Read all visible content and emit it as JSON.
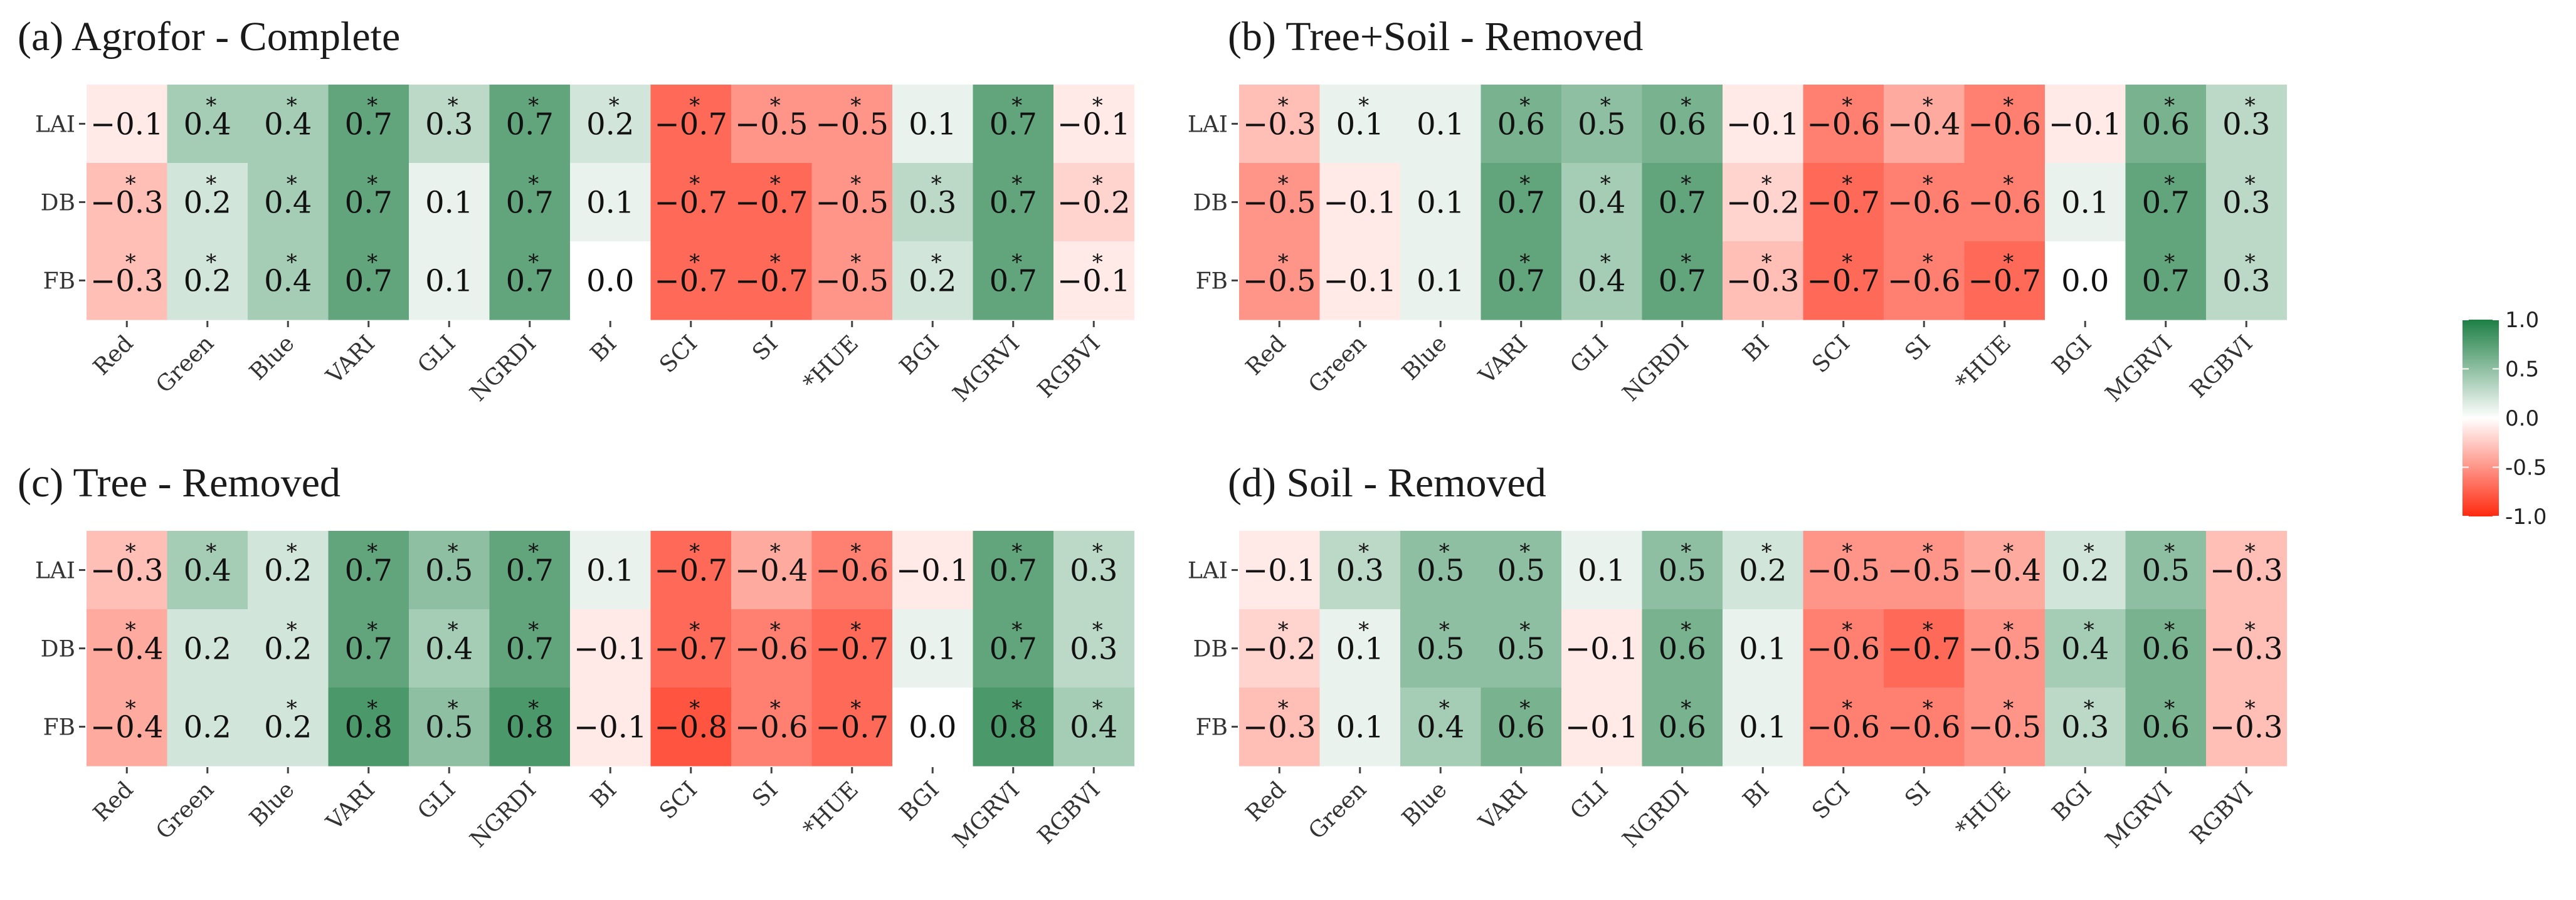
{
  "chart_data": [
    {
      "type": "heatmap",
      "title": "(a) Agrofor - Complete",
      "rows": [
        "LAI",
        "DB",
        "FB"
      ],
      "columns": [
        "Red",
        "Green",
        "Blue",
        "VARI",
        "GLI",
        "NGRDI",
        "BI",
        "SCI",
        "SI",
        "*HUE",
        "BGI",
        "MGRVI",
        "RGBVI"
      ],
      "labels": [
        [
          "−0.1",
          "0.4",
          "0.4",
          "0.7",
          "0.3",
          "0.7",
          "0.2",
          "−0.7",
          "−0.5",
          "−0.5",
          "0.1",
          "0.7",
          "−0.1"
        ],
        [
          "−0.3",
          "0.2",
          "0.4",
          "0.7",
          "0.1",
          "0.7",
          "0.1",
          "−0.7",
          "−0.7",
          "−0.5",
          "0.3",
          "0.7",
          "−0.2"
        ],
        [
          "−0.3",
          "0.2",
          "0.4",
          "0.7",
          "0.1",
          "0.7",
          "0.0",
          "−0.7",
          "−0.7",
          "−0.5",
          "0.2",
          "0.7",
          "−0.1"
        ]
      ],
      "values": [
        [
          -0.1,
          0.4,
          0.4,
          0.7,
          0.3,
          0.7,
          0.2,
          -0.7,
          -0.5,
          -0.5,
          0.1,
          0.7,
          -0.1
        ],
        [
          -0.3,
          0.2,
          0.4,
          0.7,
          0.1,
          0.7,
          0.1,
          -0.7,
          -0.7,
          -0.5,
          0.3,
          0.7,
          -0.2
        ],
        [
          -0.3,
          0.2,
          0.4,
          0.7,
          0.1,
          0.7,
          0.0,
          -0.7,
          -0.7,
          -0.5,
          0.2,
          0.7,
          -0.1
        ]
      ],
      "significant": [
        [
          0,
          1,
          1,
          1,
          1,
          1,
          1,
          1,
          1,
          1,
          0,
          1,
          1
        ],
        [
          1,
          1,
          1,
          1,
          0,
          1,
          0,
          1,
          1,
          1,
          1,
          1,
          1
        ],
        [
          1,
          1,
          1,
          1,
          0,
          1,
          0,
          1,
          1,
          1,
          1,
          1,
          1
        ]
      ]
    },
    {
      "type": "heatmap",
      "title": "(b) Tree+Soil - Removed",
      "rows": [
        "LAI",
        "DB",
        "FB"
      ],
      "columns": [
        "Red",
        "Green",
        "Blue",
        "VARI",
        "GLI",
        "NGRDI",
        "BI",
        "SCI",
        "SI",
        "*HUE",
        "BGI",
        "MGRVI",
        "RGBVI"
      ],
      "labels": [
        [
          "−0.3",
          "0.1",
          "0.1",
          "0.6",
          "0.5",
          "0.6",
          "−0.1",
          "−0.6",
          "−0.4",
          "−0.6",
          "−0.1",
          "0.6",
          "0.3"
        ],
        [
          "−0.5",
          "−0.1",
          "0.1",
          "0.7",
          "0.4",
          "0.7",
          "−0.2",
          "−0.7",
          "−0.6",
          "−0.6",
          "0.1",
          "0.7",
          "0.3"
        ],
        [
          "−0.5",
          "−0.1",
          "0.1",
          "0.7",
          "0.4",
          "0.7",
          "−0.3",
          "−0.7",
          "−0.6",
          "−0.7",
          "0.0",
          "0.7",
          "0.3"
        ]
      ],
      "values": [
        [
          -0.3,
          0.1,
          0.1,
          0.6,
          0.5,
          0.6,
          -0.1,
          -0.6,
          -0.4,
          -0.6,
          -0.1,
          0.6,
          0.3
        ],
        [
          -0.5,
          -0.1,
          0.1,
          0.7,
          0.4,
          0.7,
          -0.2,
          -0.7,
          -0.6,
          -0.6,
          0.1,
          0.7,
          0.3
        ],
        [
          -0.5,
          -0.1,
          0.1,
          0.7,
          0.4,
          0.7,
          -0.3,
          -0.7,
          -0.6,
          -0.7,
          0.0,
          0.7,
          0.3
        ]
      ],
      "significant": [
        [
          1,
          1,
          0,
          1,
          1,
          1,
          0,
          1,
          1,
          1,
          0,
          1,
          1
        ],
        [
          1,
          0,
          0,
          1,
          1,
          1,
          1,
          1,
          1,
          1,
          0,
          1,
          1
        ],
        [
          1,
          0,
          0,
          1,
          1,
          1,
          1,
          1,
          1,
          1,
          0,
          1,
          1
        ]
      ]
    },
    {
      "type": "heatmap",
      "title": "(c) Tree - Removed",
      "rows": [
        "LAI",
        "DB",
        "FB"
      ],
      "columns": [
        "Red",
        "Green",
        "Blue",
        "VARI",
        "GLI",
        "NGRDI",
        "BI",
        "SCI",
        "SI",
        "*HUE",
        "BGI",
        "MGRVI",
        "RGBVI"
      ],
      "labels": [
        [
          "−0.3",
          "0.4",
          "0.2",
          "0.7",
          "0.5",
          "0.7",
          "0.1",
          "−0.7",
          "−0.4",
          "−0.6",
          "−0.1",
          "0.7",
          "0.3"
        ],
        [
          "−0.4",
          "0.2",
          "0.2",
          "0.7",
          "0.4",
          "0.7",
          "−0.1",
          "−0.7",
          "−0.6",
          "−0.7",
          "0.1",
          "0.7",
          "0.3"
        ],
        [
          "−0.4",
          "0.2",
          "0.2",
          "0.8",
          "0.5",
          "0.8",
          "−0.1",
          "−0.8",
          "−0.6",
          "−0.7",
          "0.0",
          "0.8",
          "0.4"
        ]
      ],
      "values": [
        [
          -0.3,
          0.4,
          0.2,
          0.7,
          0.5,
          0.7,
          0.1,
          -0.7,
          -0.4,
          -0.6,
          -0.1,
          0.7,
          0.3
        ],
        [
          -0.4,
          0.2,
          0.2,
          0.7,
          0.4,
          0.7,
          -0.1,
          -0.7,
          -0.6,
          -0.7,
          0.1,
          0.7,
          0.3
        ],
        [
          -0.4,
          0.2,
          0.2,
          0.8,
          0.5,
          0.8,
          -0.1,
          -0.8,
          -0.6,
          -0.7,
          0.0,
          0.8,
          0.4
        ]
      ],
      "significant": [
        [
          1,
          1,
          1,
          1,
          1,
          1,
          0,
          1,
          1,
          1,
          0,
          1,
          1
        ],
        [
          1,
          0,
          1,
          1,
          1,
          1,
          0,
          1,
          1,
          1,
          0,
          1,
          1
        ],
        [
          1,
          0,
          1,
          1,
          1,
          1,
          0,
          1,
          1,
          1,
          0,
          1,
          1
        ]
      ]
    },
    {
      "type": "heatmap",
      "title": "(d) Soil - Removed",
      "rows": [
        "LAI",
        "DB",
        "FB"
      ],
      "columns": [
        "Red",
        "Green",
        "Blue",
        "VARI",
        "GLI",
        "NGRDI",
        "BI",
        "SCI",
        "SI",
        "*HUE",
        "BGI",
        "MGRVI",
        "RGBVI"
      ],
      "labels": [
        [
          "−0.1",
          "0.3",
          "0.5",
          "0.5",
          "0.1",
          "0.5",
          "0.2",
          "−0.5",
          "−0.5",
          "−0.4",
          "0.2",
          "0.5",
          "−0.3"
        ],
        [
          "−0.2",
          "0.1",
          "0.5",
          "0.5",
          "−0.1",
          "0.6",
          "0.1",
          "−0.6",
          "−0.7",
          "−0.5",
          "0.4",
          "0.6",
          "−0.3"
        ],
        [
          "−0.3",
          "0.1",
          "0.4",
          "0.6",
          "−0.1",
          "0.6",
          "0.1",
          "−0.6",
          "−0.6",
          "−0.5",
          "0.3",
          "0.6",
          "−0.3"
        ]
      ],
      "values": [
        [
          -0.1,
          0.3,
          0.5,
          0.5,
          0.1,
          0.5,
          0.2,
          -0.5,
          -0.5,
          -0.4,
          0.2,
          0.5,
          -0.3
        ],
        [
          -0.2,
          0.1,
          0.5,
          0.5,
          -0.1,
          0.6,
          0.1,
          -0.6,
          -0.7,
          -0.5,
          0.4,
          0.6,
          -0.3
        ],
        [
          -0.3,
          0.1,
          0.4,
          0.6,
          -0.1,
          0.6,
          0.1,
          -0.6,
          -0.6,
          -0.5,
          0.3,
          0.6,
          -0.3
        ]
      ],
      "significant": [
        [
          0,
          1,
          1,
          1,
          0,
          1,
          1,
          1,
          1,
          1,
          1,
          1,
          1
        ],
        [
          1,
          1,
          1,
          1,
          0,
          1,
          0,
          1,
          1,
          1,
          1,
          1,
          1
        ],
        [
          1,
          0,
          1,
          1,
          0,
          1,
          0,
          1,
          1,
          1,
          1,
          1,
          1
        ]
      ]
    }
  ],
  "legend": {
    "range": [
      -1.0,
      1.0
    ],
    "ticks": [
      "1.0",
      "0.5",
      "0.0",
      "-0.5",
      "-1.0"
    ],
    "tick_values": [
      1.0,
      0.5,
      0.0,
      -0.5,
      -1.0
    ],
    "colors": {
      "high": "#1e7f45",
      "mid": "#ffffff",
      "low": "#ff2a10"
    }
  },
  "significance_marker": "*"
}
